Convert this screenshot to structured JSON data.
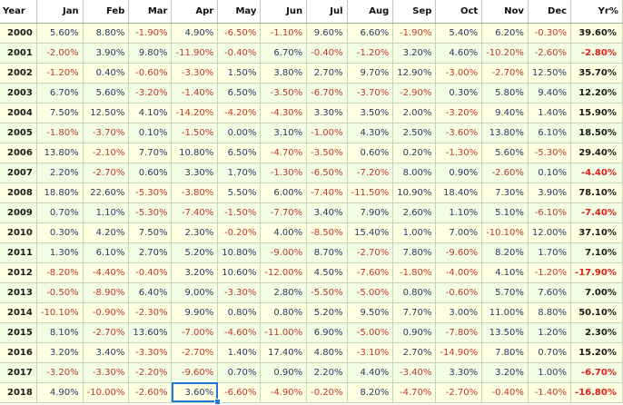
{
  "headers": [
    "Year",
    "Jan",
    "Feb",
    "Mar",
    "Apr",
    "May",
    "Jun",
    "Jul",
    "Aug",
    "Sep",
    "Oct",
    "Nov",
    "Dec",
    "Yr%"
  ],
  "rows": [
    {
      "year": "2000",
      "m": [
        "5.60%",
        "8.80%",
        "-1.90%",
        "4.90%",
        "-6.50%",
        "-1.10%",
        "9.60%",
        "6.60%",
        "-1.90%",
        "5.40%",
        "6.20%",
        "-0.30%"
      ],
      "yr": "39.60%"
    },
    {
      "year": "2001",
      "m": [
        "-2.00%",
        "3.90%",
        "9.80%",
        "-11.90%",
        "-0.40%",
        "6.70%",
        "-0.40%",
        "-1.20%",
        "3.20%",
        "4.60%",
        "-10.20%",
        "-2.60%"
      ],
      "yr": "-2.80%"
    },
    {
      "year": "2002",
      "m": [
        "-1.20%",
        "0.40%",
        "-0.60%",
        "-3.30%",
        "1.50%",
        "3.80%",
        "2.70%",
        "9.70%",
        "12.90%",
        "-3.00%",
        "-2.70%",
        "12.50%"
      ],
      "yr": "35.70%"
    },
    {
      "year": "2003",
      "m": [
        "6.70%",
        "5.60%",
        "-3.20%",
        "-1.40%",
        "6.50%",
        "-3.50%",
        "-6.70%",
        "-3.70%",
        "-2.90%",
        "0.30%",
        "5.80%",
        "9.40%"
      ],
      "yr": "12.20%"
    },
    {
      "year": "2004",
      "m": [
        "7.50%",
        "12.50%",
        "4.10%",
        "-14.20%",
        "-4.20%",
        "-4.30%",
        "3.30%",
        "3.50%",
        "2.00%",
        "-3.20%",
        "9.40%",
        "1.40%"
      ],
      "yr": "15.90%"
    },
    {
      "year": "2005",
      "m": [
        "-1.80%",
        "-3.70%",
        "0.10%",
        "-1.50%",
        "0.00%",
        "3.10%",
        "-1.00%",
        "4.30%",
        "2.50%",
        "-3.60%",
        "13.80%",
        "6.10%"
      ],
      "yr": "18.50%"
    },
    {
      "year": "2006",
      "m": [
        "13.80%",
        "-2.10%",
        "7.70%",
        "10.80%",
        "6.50%",
        "-4.70%",
        "-3.50%",
        "0.60%",
        "0.20%",
        "-1.30%",
        "5.60%",
        "-5.30%"
      ],
      "yr": "29.40%"
    },
    {
      "year": "2007",
      "m": [
        "2.20%",
        "-2.70%",
        "0.60%",
        "3.30%",
        "1.70%",
        "-1.30%",
        "-6.50%",
        "-7.20%",
        "8.00%",
        "0.90%",
        "-2.60%",
        "0.10%"
      ],
      "yr": "-4.40%"
    },
    {
      "year": "2008",
      "m": [
        "18.80%",
        "22.60%",
        "-5.30%",
        "-3.80%",
        "5.50%",
        "6.00%",
        "-7.40%",
        "-11.50%",
        "10.90%",
        "18.40%",
        "7.30%",
        "3.90%"
      ],
      "yr": "78.10%"
    },
    {
      "year": "2009",
      "m": [
        "0.70%",
        "1.10%",
        "-5.30%",
        "-7.40%",
        "-1.50%",
        "-7.70%",
        "3.40%",
        "7.90%",
        "2.60%",
        "1.10%",
        "5.10%",
        "-6.10%"
      ],
      "yr": "-7.40%"
    },
    {
      "year": "2010",
      "m": [
        "0.30%",
        "4.20%",
        "7.50%",
        "2.30%",
        "-0.20%",
        "4.00%",
        "-8.50%",
        "15.40%",
        "1.00%",
        "7.00%",
        "-10.10%",
        "12.00%"
      ],
      "yr": "37.10%"
    },
    {
      "year": "2011",
      "m": [
        "1.30%",
        "6.10%",
        "2.70%",
        "5.20%",
        "10.80%",
        "-9.00%",
        "8.70%",
        "-2.70%",
        "7.80%",
        "-9.60%",
        "8.20%",
        "1.70%"
      ],
      "yr": "7.10%"
    },
    {
      "year": "2012",
      "m": [
        "-8.20%",
        "-4.40%",
        "-0.40%",
        "3.20%",
        "10.60%",
        "-12.00%",
        "4.50%",
        "-7.60%",
        "-1.80%",
        "-4.00%",
        "4.10%",
        "-1.20%"
      ],
      "yr": "-17.90%"
    },
    {
      "year": "2013",
      "m": [
        "-0.50%",
        "-8.90%",
        "6.40%",
        "9.00%",
        "-3.30%",
        "2.80%",
        "-5.50%",
        "-5.00%",
        "0.80%",
        "-0.60%",
        "5.70%",
        "7.60%"
      ],
      "yr": "7.00%"
    },
    {
      "year": "2014",
      "m": [
        "-10.10%",
        "-0.90%",
        "-2.30%",
        "9.90%",
        "0.80%",
        "0.80%",
        "5.20%",
        "9.50%",
        "7.70%",
        "3.00%",
        "11.00%",
        "8.80%"
      ],
      "yr": "50.10%"
    },
    {
      "year": "2015",
      "m": [
        "8.10%",
        "-2.70%",
        "13.60%",
        "-7.00%",
        "-4.60%",
        "-11.00%",
        "6.90%",
        "-5.00%",
        "0.90%",
        "-7.80%",
        "13.50%",
        "1.20%"
      ],
      "yr": "2.30%"
    },
    {
      "year": "2016",
      "m": [
        "3.20%",
        "3.40%",
        "-3.30%",
        "-2.70%",
        "1.40%",
        "17.40%",
        "4.80%",
        "-3.10%",
        "2.70%",
        "-14.90%",
        "7.80%",
        "0.70%"
      ],
      "yr": "15.20%"
    },
    {
      "year": "2017",
      "m": [
        "-3.20%",
        "-3.30%",
        "-2.20%",
        "-9.60%",
        "0.70%",
        "0.90%",
        "2.20%",
        "4.40%",
        "-3.40%",
        "3.30%",
        "3.20%",
        "1.00%"
      ],
      "yr": "-6.70%"
    },
    {
      "year": "2018",
      "m": [
        "4.90%",
        "-10.00%",
        "-2.60%",
        "3.60%",
        "-6.60%",
        "-4.90%",
        "-0.20%",
        "8.20%",
        "-4.70%",
        "-2.70%",
        "-0.40%",
        "-1.40%"
      ],
      "yr": "-16.80%"
    }
  ],
  "selected": {
    "row": 18,
    "col": 3
  },
  "colors": {
    "positive": "#2a3a66",
    "negative": "#c0392b",
    "yr_negative": "#e02020",
    "row_even": "#ffffe2",
    "row_odd": "#f2fde3",
    "grid": "#c6d6bd",
    "selection": "#1e78d6"
  }
}
